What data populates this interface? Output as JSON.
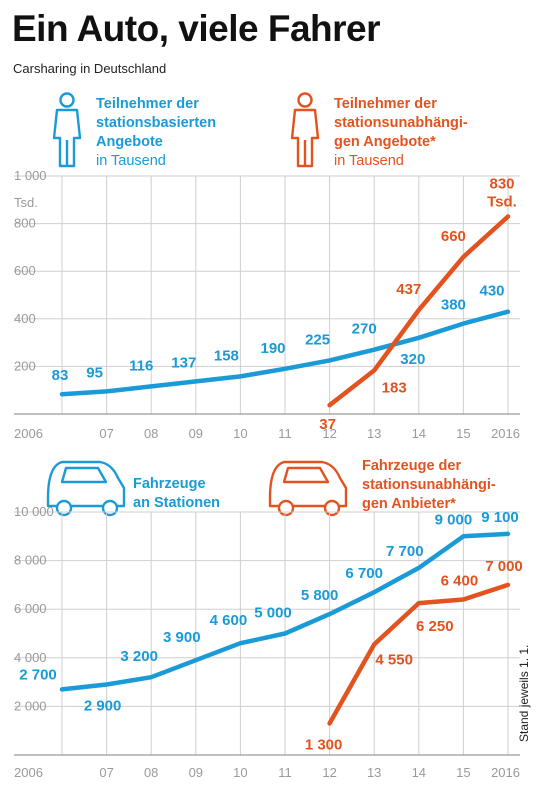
{
  "title": "Ein Auto, viele Fahrer",
  "subtitle": "Carsharing in Deutschland",
  "note": "Stand jeweils 1. 1.",
  "colors": {
    "blue": "#1a9ad6",
    "orange": "#e2531f",
    "grid": "#cfcfcf"
  },
  "chart_data": [
    {
      "type": "line",
      "categories": [
        "2006",
        "07",
        "08",
        "09",
        "10",
        "11",
        "12",
        "13",
        "14",
        "15",
        "2016"
      ],
      "ylim": [
        0,
        1000
      ],
      "yticks": [
        {
          "value": 200,
          "label": "200"
        },
        {
          "value": 400,
          "label": "400"
        },
        {
          "value": 600,
          "label": "600"
        },
        {
          "value": 800,
          "label": "800"
        },
        {
          "value": 1000,
          "label": "1 000"
        }
      ],
      "yunit": "Tsd.",
      "grid": true,
      "series": [
        {
          "name": "Teilnehmer der stationsbasierten Angebote",
          "unit": "in Tausend",
          "color": "#1a9ad6",
          "icon": "person-icon",
          "values": [
            83,
            95,
            116,
            137,
            158,
            190,
            225,
            270,
            320,
            380,
            430
          ],
          "labels": [
            "83",
            "95",
            "116",
            "137",
            "158",
            "190",
            "225",
            "270",
            "320",
            "380",
            "430"
          ]
        },
        {
          "name": "Teilnehmer der stationsunabhängigen Angebote*",
          "unit": "in Tausend",
          "color": "#e2531f",
          "icon": "person-icon",
          "values": [
            null,
            null,
            null,
            null,
            null,
            null,
            37,
            183,
            437,
            660,
            830
          ],
          "labels": [
            "",
            "",
            "",
            "",
            "",
            "",
            "37",
            "183",
            "437",
            "660",
            "830"
          ],
          "last_label_unit": "Tsd."
        }
      ]
    },
    {
      "type": "line",
      "categories": [
        "2006",
        "07",
        "08",
        "09",
        "10",
        "11",
        "12",
        "13",
        "14",
        "15",
        "2016"
      ],
      "ylim": [
        0,
        10000
      ],
      "yticks": [
        {
          "value": 2000,
          "label": "2 000"
        },
        {
          "value": 4000,
          "label": "4 000"
        },
        {
          "value": 6000,
          "label": "6 000"
        },
        {
          "value": 8000,
          "label": "8 000"
        },
        {
          "value": 10000,
          "label": "10 000"
        }
      ],
      "grid": true,
      "series": [
        {
          "name": "Fahrzeuge an Stationen",
          "color": "#1a9ad6",
          "icon": "car-icon",
          "values": [
            2700,
            2900,
            3200,
            3900,
            4600,
            5000,
            5800,
            6700,
            7700,
            9000,
            9100
          ],
          "labels": [
            "2 700",
            "2 900",
            "3 200",
            "3 900",
            "4 600",
            "5 000",
            "5 800",
            "6 700",
            "7 700",
            "9 000",
            "9 100"
          ]
        },
        {
          "name": "Fahrzeuge der stationsunabhängigen Anbieter*",
          "color": "#e2531f",
          "icon": "car-icon",
          "values": [
            null,
            null,
            null,
            null,
            null,
            null,
            1300,
            4550,
            6250,
            6400,
            7000
          ],
          "labels": [
            "",
            "",
            "",
            "",
            "",
            "",
            "1 300",
            "4 550",
            "6 250",
            "6 400",
            "7 000"
          ]
        }
      ]
    }
  ]
}
